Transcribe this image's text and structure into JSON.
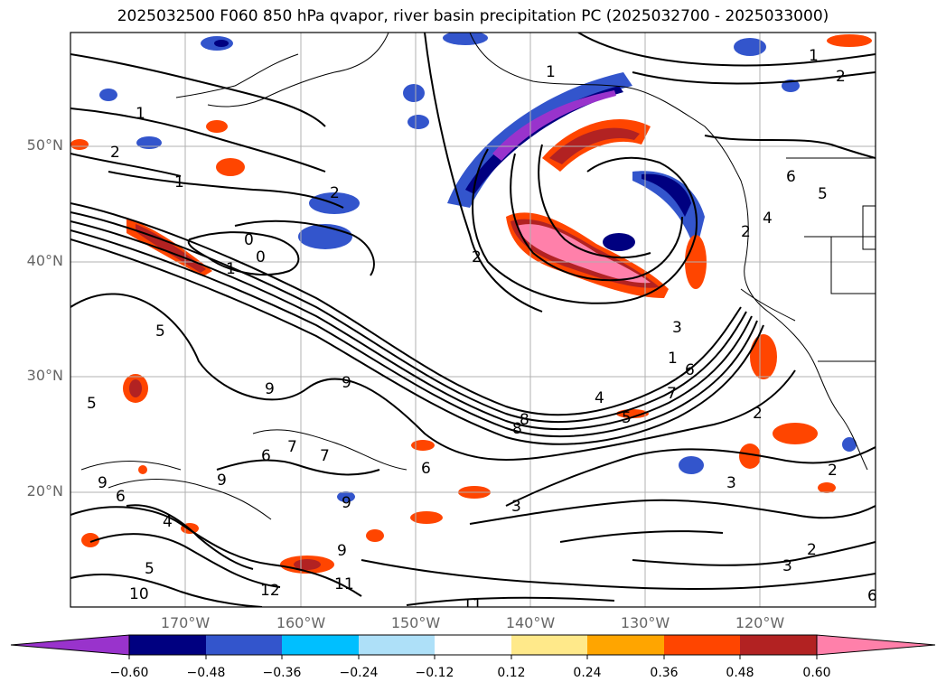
{
  "title": "2025032500 F060 850 hPa qvapor, river basin precipitation PC (2025032700 - 2025033000)",
  "lat_labels": [
    "50°N",
    "40°N",
    "30°N",
    "20°N"
  ],
  "lon_labels": [
    "170°W",
    "160°W",
    "150°W",
    "140°W",
    "130°W",
    "120°W"
  ],
  "colorbar": {
    "ticks": [
      "−0.60",
      "−0.48",
      "−0.36",
      "−0.24",
      "−0.12",
      "0.12",
      "0.24",
      "0.36",
      "0.48",
      "0.60"
    ],
    "colors": [
      "#9933cc",
      "#000080",
      "#3355cc",
      "#00bfff",
      "#aee0f8",
      "#ffffff",
      "#ffe98a",
      "#ffa500",
      "#ff4500",
      "#b22222",
      "#ff80aa"
    ]
  },
  "contour_labels": [
    "1",
    "2",
    "1",
    "2",
    "1",
    "2",
    "0",
    "0",
    "1",
    "2",
    "5",
    "5",
    "9",
    "9",
    "7",
    "6",
    "7",
    "6",
    "9",
    "9",
    "6",
    "4",
    "5",
    "10",
    "12",
    "11",
    "11",
    "9",
    "9",
    "8",
    "3",
    "3",
    "3",
    "2",
    "2",
    "3",
    "1",
    "7",
    "6",
    "4",
    "8",
    "5",
    "2",
    "6",
    "4",
    "2",
    "5",
    "1",
    "6"
  ]
}
